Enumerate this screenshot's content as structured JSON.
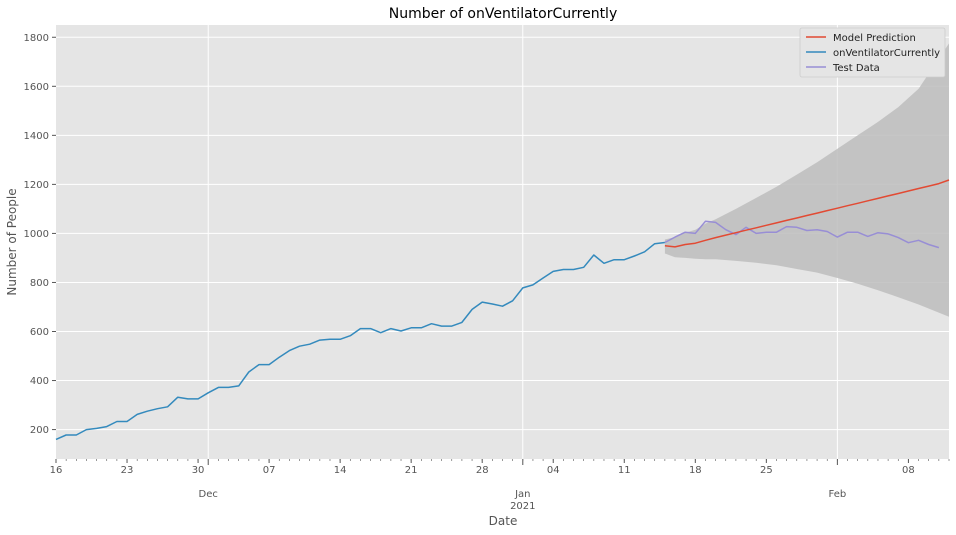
{
  "chart_data": {
    "type": "line",
    "title": "Number of onVentilatorCurrently",
    "xlabel": "Date",
    "ylabel": "Number of People",
    "xlim": [
      "2020-11-16",
      "2021-02-12"
    ],
    "ylim": [
      80,
      1850
    ],
    "y_ticks": [
      200,
      400,
      600,
      800,
      1000,
      1200,
      1400,
      1600,
      1800
    ],
    "x_ticks": [
      {
        "date": "2020-11-16",
        "label": "16"
      },
      {
        "date": "2020-11-23",
        "label": "23"
      },
      {
        "date": "2020-11-30",
        "label": "30"
      },
      {
        "date": "2020-12-07",
        "label": "07"
      },
      {
        "date": "2020-12-14",
        "label": "14"
      },
      {
        "date": "2020-12-21",
        "label": "21"
      },
      {
        "date": "2020-12-28",
        "label": "28"
      },
      {
        "date": "2021-01-04",
        "label": "04"
      },
      {
        "date": "2021-01-11",
        "label": "11"
      },
      {
        "date": "2021-01-18",
        "label": "18"
      },
      {
        "date": "2021-01-25",
        "label": "25"
      },
      {
        "date": "2021-02-08",
        "label": "08"
      }
    ],
    "x_major_ticks": [
      {
        "date": "2020-12-01",
        "label": "Dec"
      },
      {
        "date": "2021-01-01",
        "label": "Jan",
        "sublabel": "2021"
      },
      {
        "date": "2021-02-01",
        "label": "Feb"
      }
    ],
    "grid": true,
    "legend_position": "top-right",
    "colors": {
      "plot_background": "#e5e5e5",
      "grid": "#ffffff",
      "confidence_band": "#bdbdbd"
    },
    "series": [
      {
        "name": "Model Prediction",
        "color": "#e24a33",
        "x": [
          "2021-01-15",
          "2021-01-16",
          "2021-01-17",
          "2021-01-18",
          "2021-01-19",
          "2021-01-20",
          "2021-01-21",
          "2021-01-22",
          "2021-01-23",
          "2021-01-24",
          "2021-01-25",
          "2021-01-26",
          "2021-01-27",
          "2021-01-28",
          "2021-01-29",
          "2021-01-30",
          "2021-01-31",
          "2021-02-01",
          "2021-02-02",
          "2021-02-03",
          "2021-02-04",
          "2021-02-05",
          "2021-02-06",
          "2021-02-07",
          "2021-02-08",
          "2021-02-09",
          "2021-02-10",
          "2021-02-11",
          "2021-02-12"
        ],
        "y": [
          950,
          945,
          955,
          960,
          972,
          983,
          993,
          1003,
          1013,
          1023,
          1033,
          1043,
          1053,
          1063,
          1073,
          1083,
          1093,
          1103,
          1113,
          1123,
          1133,
          1143,
          1153,
          1163,
          1173,
          1183,
          1193,
          1203,
          1218
        ]
      },
      {
        "name": "onVentilatorCurrently",
        "color": "#348abd",
        "x": [
          "2020-11-16",
          "2020-11-17",
          "2020-11-18",
          "2020-11-19",
          "2020-11-20",
          "2020-11-21",
          "2020-11-22",
          "2020-11-23",
          "2020-11-24",
          "2020-11-25",
          "2020-11-26",
          "2020-11-27",
          "2020-11-28",
          "2020-11-29",
          "2020-11-30",
          "2020-12-01",
          "2020-12-02",
          "2020-12-03",
          "2020-12-04",
          "2020-12-05",
          "2020-12-06",
          "2020-12-07",
          "2020-12-08",
          "2020-12-09",
          "2020-12-10",
          "2020-12-11",
          "2020-12-12",
          "2020-12-13",
          "2020-12-14",
          "2020-12-15",
          "2020-12-16",
          "2020-12-17",
          "2020-12-18",
          "2020-12-19",
          "2020-12-20",
          "2020-12-21",
          "2020-12-22",
          "2020-12-23",
          "2020-12-24",
          "2020-12-25",
          "2020-12-26",
          "2020-12-27",
          "2020-12-28",
          "2020-12-29",
          "2020-12-30",
          "2020-12-31",
          "2021-01-01",
          "2021-01-02",
          "2021-01-03",
          "2021-01-04",
          "2021-01-05",
          "2021-01-06",
          "2021-01-07",
          "2021-01-08",
          "2021-01-09",
          "2021-01-10",
          "2021-01-11",
          "2021-01-12",
          "2021-01-13",
          "2021-01-14",
          "2021-01-15"
        ],
        "y": [
          160,
          178,
          178,
          200,
          205,
          212,
          233,
          233,
          262,
          275,
          285,
          293,
          332,
          325,
          325,
          350,
          372,
          372,
          378,
          435,
          465,
          465,
          495,
          522,
          540,
          548,
          565,
          568,
          568,
          583,
          612,
          612,
          595,
          612,
          602,
          615,
          615,
          632,
          622,
          622,
          637,
          690,
          720,
          712,
          703,
          725,
          778,
          790,
          818,
          845,
          853,
          853,
          862,
          912,
          878,
          893,
          893,
          908,
          925,
          958,
          963
        ]
      },
      {
        "name": "Test Data",
        "color": "#988ed5",
        "x": [
          "2021-01-15",
          "2021-01-16",
          "2021-01-17",
          "2021-01-18",
          "2021-01-19",
          "2021-01-20",
          "2021-01-21",
          "2021-01-22",
          "2021-01-23",
          "2021-01-24",
          "2021-01-25",
          "2021-01-26",
          "2021-01-27",
          "2021-01-28",
          "2021-01-29",
          "2021-01-30",
          "2021-01-31",
          "2021-02-01",
          "2021-02-02",
          "2021-02-03",
          "2021-02-04",
          "2021-02-05",
          "2021-02-06",
          "2021-02-07",
          "2021-02-08",
          "2021-02-09",
          "2021-02-10",
          "2021-02-11"
        ],
        "y": [
          963,
          985,
          1005,
          1000,
          1050,
          1045,
          1015,
          995,
          1025,
          1000,
          1005,
          1005,
          1028,
          1025,
          1012,
          1015,
          1008,
          985,
          1005,
          1005,
          988,
          1003,
          998,
          983,
          962,
          972,
          955,
          942
        ]
      }
    ],
    "confidence_interval": {
      "x": [
        "2021-01-15",
        "2021-01-16",
        "2021-01-17",
        "2021-01-18",
        "2021-01-19",
        "2021-01-20",
        "2021-01-22",
        "2021-01-24",
        "2021-01-26",
        "2021-01-28",
        "2021-01-30",
        "2021-02-01",
        "2021-02-03",
        "2021-02-05",
        "2021-02-07",
        "2021-02-09",
        "2021-02-12"
      ],
      "lower": [
        918,
        903,
        900,
        897,
        895,
        895,
        888,
        880,
        870,
        855,
        840,
        818,
        795,
        768,
        740,
        710,
        660
      ],
      "upper": [
        975,
        985,
        1003,
        1015,
        1040,
        1058,
        1100,
        1145,
        1190,
        1240,
        1290,
        1345,
        1400,
        1455,
        1515,
        1590,
        1775
      ]
    }
  }
}
